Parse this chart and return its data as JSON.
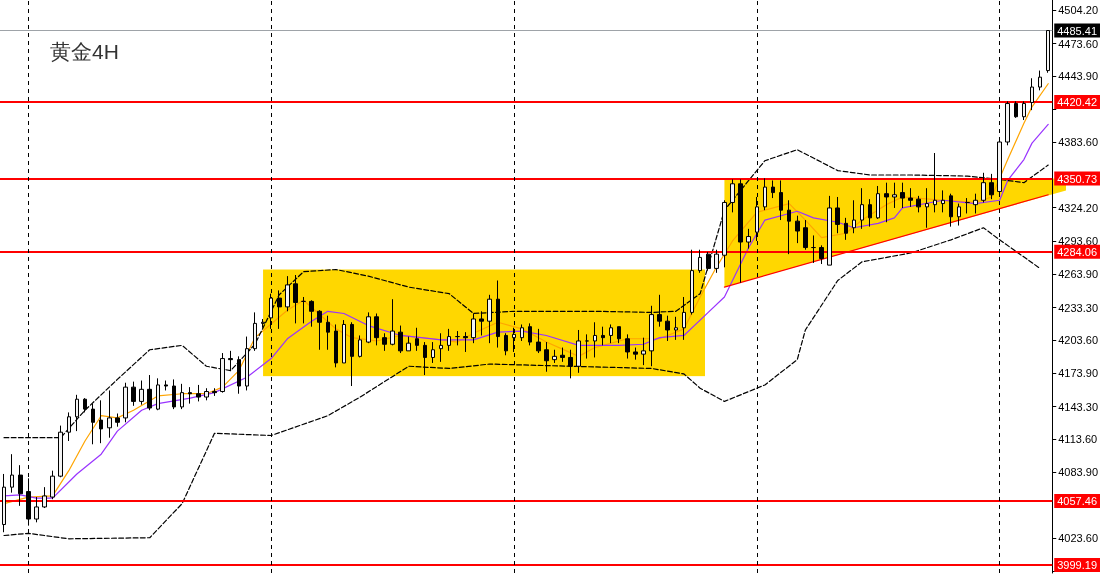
{
  "chart_data": {
    "type": "candlestick",
    "title": "黄金4H",
    "categories": [
      null,
      null,
      null,
      null,
      null,
      null,
      null,
      null,
      null,
      null,
      null,
      null,
      null,
      null,
      null,
      null,
      null,
      null,
      null,
      null,
      null,
      null,
      null,
      null,
      null,
      null,
      null,
      null,
      null,
      null,
      null,
      null,
      null,
      null,
      null,
      null,
      null,
      null,
      null,
      null,
      null,
      null,
      null,
      null,
      null,
      null,
      null,
      null,
      null,
      null,
      null,
      null,
      null,
      null,
      null,
      null,
      null,
      null,
      null,
      null,
      null,
      null,
      null,
      null,
      null,
      null,
      null,
      null,
      null,
      null,
      null,
      null,
      null,
      null,
      null,
      null,
      null,
      null,
      null,
      null,
      null,
      null,
      null,
      null,
      null,
      null,
      null,
      null,
      null,
      null,
      null,
      null,
      null,
      null,
      null,
      null,
      null,
      null,
      null,
      null,
      null,
      null,
      null,
      null,
      null,
      null,
      null,
      null,
      null,
      null,
      null,
      null,
      null,
      null,
      null,
      null,
      null,
      null,
      null,
      null,
      null,
      null,
      null,
      null,
      null,
      null,
      null,
      null,
      null,
      null
    ],
    "ohlc": [
      [
        4036,
        4082,
        4029,
        4070
      ],
      [
        4070,
        4100,
        4065,
        4081
      ],
      [
        4081,
        4090,
        4053,
        4064
      ],
      [
        4066,
        4078,
        4035,
        4041
      ],
      [
        4041,
        4061,
        4038,
        4052
      ],
      [
        4052,
        4070,
        4051,
        4062
      ],
      [
        4061,
        4085,
        4059,
        4080
      ],
      [
        4080,
        4126,
        4079,
        4120
      ],
      [
        4120,
        4138,
        4112,
        4134
      ],
      [
        4134,
        4154,
        4121,
        4150
      ],
      [
        4150,
        4151,
        4138,
        4141
      ],
      [
        4141,
        4146,
        4109,
        4129
      ],
      [
        4131,
        4149,
        4110,
        4123
      ],
      [
        4124,
        4158,
        4115,
        4133
      ],
      [
        4133,
        4137,
        4125,
        4129
      ],
      [
        4133,
        4165,
        4129,
        4161
      ],
      [
        4161,
        4166,
        4144,
        4148
      ],
      [
        4148,
        4167,
        4145,
        4159
      ],
      [
        4159,
        4172,
        4140,
        4142
      ],
      [
        4141,
        4169,
        4140,
        4163
      ],
      [
        4163,
        4167,
        4158,
        4162
      ],
      [
        4162,
        4168,
        4141,
        4143
      ],
      [
        4143,
        4164,
        4141,
        4156
      ],
      [
        4156,
        4161,
        4146,
        4155
      ],
      [
        4155,
        4163,
        4148,
        4152
      ],
      [
        4152,
        4160,
        4149,
        4157
      ],
      [
        4157,
        4160,
        4153,
        4156
      ],
      [
        4157,
        4192,
        4156,
        4187
      ],
      [
        4187,
        4194,
        4176,
        4186
      ],
      [
        4186,
        4189,
        4155,
        4162
      ],
      [
        4162,
        4207,
        4158,
        4196
      ],
      [
        4196,
        4229,
        4194,
        4219
      ],
      [
        4219,
        4223,
        4215,
        4220
      ],
      [
        4224,
        4246,
        4214,
        4242
      ],
      [
        4242,
        4249,
        4214,
        4234
      ],
      [
        4234,
        4262,
        4230,
        4254
      ],
      [
        4255,
        4263,
        4219,
        4238
      ],
      [
        4239,
        4243,
        4219,
        4239
      ],
      [
        4239,
        4240,
        4216,
        4230
      ],
      [
        4230,
        4231,
        4195,
        4220
      ],
      [
        4220,
        4226,
        4195,
        4211
      ],
      [
        4212,
        4218,
        4179,
        4183
      ],
      [
        4183,
        4222,
        4183,
        4218
      ],
      [
        4218,
        4220,
        4162,
        4189
      ],
      [
        4189,
        4208,
        4188,
        4204
      ],
      [
        4202,
        4229,
        4201,
        4225
      ],
      [
        4225,
        4228,
        4199,
        4206
      ],
      [
        4206,
        4210,
        4194,
        4200
      ],
      [
        4200,
        4241,
        4199,
        4212
      ],
      [
        4211,
        4217,
        4192,
        4194
      ],
      [
        4194,
        4207,
        4194,
        4201
      ],
      [
        4205,
        4215,
        4194,
        4199
      ],
      [
        4199,
        4202,
        4172,
        4188
      ],
      [
        4188,
        4202,
        4183,
        4195
      ],
      [
        4196,
        4210,
        4184,
        4199
      ],
      [
        4199,
        4214,
        4194,
        4207
      ],
      [
        4207,
        4212,
        4199,
        4207
      ],
      [
        4207,
        4211,
        4193,
        4206
      ],
      [
        4206,
        4228,
        4201,
        4223
      ],
      [
        4223,
        4230,
        4208,
        4221
      ],
      [
        4221,
        4245,
        4201,
        4241
      ],
      [
        4241,
        4258,
        4197,
        4207
      ],
      [
        4208,
        4210,
        4190,
        4194
      ],
      [
        4206,
        4215,
        4193,
        4209
      ],
      [
        4206,
        4218,
        4203,
        4215
      ],
      [
        4216,
        4219,
        4199,
        4202
      ],
      [
        4202,
        4214,
        4192,
        4194
      ],
      [
        4195,
        4202,
        4175,
        4185
      ],
      [
        4186,
        4195,
        4183,
        4189
      ],
      [
        4190,
        4197,
        4184,
        4188
      ],
      [
        4188,
        4195,
        4169,
        4180
      ],
      [
        4180,
        4213,
        4174,
        4203
      ],
      [
        4203,
        4209,
        4187,
        4203
      ],
      [
        4203,
        4220,
        4188,
        4208
      ],
      [
        4208,
        4216,
        4199,
        4206
      ],
      [
        4208,
        4218,
        4201,
        4215
      ],
      [
        4216,
        4216,
        4201,
        4205
      ],
      [
        4205,
        4209,
        4187,
        4193
      ],
      [
        4193,
        4197,
        4186,
        4191
      ],
      [
        4191,
        4206,
        4181,
        4194
      ],
      [
        4194,
        4235,
        4180,
        4227
      ],
      [
        4227,
        4245,
        4216,
        4221
      ],
      [
        4221,
        4226,
        4203,
        4213
      ],
      [
        4213,
        4225,
        4204,
        4215
      ],
      [
        4215,
        4243,
        4204,
        4229
      ],
      [
        4229,
        4286,
        4227,
        4267
      ],
      [
        4267,
        4286,
        4265,
        4279
      ],
      [
        4282,
        4284,
        4267,
        4269
      ],
      [
        4269,
        4286,
        4265,
        4282
      ],
      [
        4281,
        4331,
        4270,
        4329
      ],
      [
        4329,
        4350,
        4320,
        4346
      ],
      [
        4346,
        4350,
        4256,
        4293
      ],
      [
        4293,
        4305,
        4287,
        4298
      ],
      [
        4302,
        4334,
        4294,
        4325
      ],
      [
        4325,
        4351,
        4322,
        4343
      ],
      [
        4343,
        4349,
        4333,
        4338
      ],
      [
        4338,
        4349,
        4313,
        4322
      ],
      [
        4322,
        4331,
        4282,
        4312
      ],
      [
        4312,
        4317,
        4292,
        4303
      ],
      [
        4306,
        4313,
        4286,
        4288
      ],
      [
        4288,
        4299,
        4274,
        4288
      ],
      [
        4288,
        4290,
        4273,
        4278
      ],
      [
        4272,
        4335,
        4272,
        4324
      ],
      [
        4324,
        4334,
        4301,
        4309
      ],
      [
        4310,
        4315,
        4295,
        4301
      ],
      [
        4306,
        4331,
        4301,
        4313
      ],
      [
        4313,
        4342,
        4305,
        4327
      ],
      [
        4327,
        4332,
        4307,
        4315
      ],
      [
        4315,
        4344,
        4314,
        4337
      ],
      [
        4337,
        4347,
        4311,
        4334
      ],
      [
        4334,
        4347,
        4324,
        4336
      ],
      [
        4338,
        4347,
        4324,
        4333
      ],
      [
        4333,
        4342,
        4325,
        4331
      ],
      [
        4332,
        4335,
        4320,
        4325
      ],
      [
        4325,
        4342,
        4306,
        4328
      ],
      [
        4327,
        4374,
        4320,
        4331
      ],
      [
        4328,
        4340,
        4320,
        4331
      ],
      [
        4335,
        4337,
        4307,
        4316
      ],
      [
        4316,
        4328,
        4308,
        4325
      ],
      [
        4329,
        4333,
        4319,
        4329
      ],
      [
        4327,
        4337,
        4319,
        4331
      ],
      [
        4331,
        4356,
        4329,
        4347
      ],
      [
        4347,
        4355,
        4332,
        4336
      ],
      [
        4339,
        4387,
        4336,
        4384
      ],
      [
        4384,
        4421,
        4381,
        4419
      ],
      [
        4419,
        4421,
        4406,
        4407
      ],
      [
        4407,
        4421,
        4404,
        4419
      ],
      [
        4420,
        4442,
        4413,
        4434
      ],
      [
        4434,
        4449,
        4431,
        4443
      ],
      [
        4449,
        4485.41,
        4447,
        4485.41
      ]
    ],
    "series": [
      {
        "type": "line",
        "color": "#ffa500",
        "values": [
          4055,
          null,
          null,
          4061,
          null,
          null,
          4062,
          null,
          4085,
          null,
          4112,
          null,
          4135,
          null,
          4133,
          null,
          4140,
          null,
          null,
          4153,
          null,
          null,
          4155,
          null,
          null,
          4155,
          null,
          4161,
          null,
          4176,
          null,
          4206,
          null,
          null,
          null,
          4231,
          null,
          4240,
          null,
          null,
          null,
          4214,
          null,
          4206,
          null,
          null,
          4203,
          null,
          null,
          4208,
          null,
          null,
          null,
          4205,
          null,
          null,
          4202,
          null,
          4210,
          null,
          null,
          4220,
          null,
          null,
          4214,
          null,
          null,
          4202,
          null,
          null,
          null,
          4189,
          null,
          4197,
          null,
          null,
          null,
          4205,
          null,
          null,
          null,
          4205,
          null,
          null,
          4214,
          null,
          4243,
          null,
          4270,
          null,
          4294,
          null,
          null,
          4320,
          null,
          null,
          null,
          4328,
          null,
          4313,
          null,
          4297,
          null,
          null,
          4301,
          null,
          4313,
          null,
          null,
          4327,
          null,
          4334,
          null,
          null,
          null,
          null,
          4331,
          null,
          null,
          null,
          4329,
          null,
          4334,
          null,
          4368,
          null,
          4401,
          4416,
          null,
          4437
        ]
      },
      {
        "type": "line",
        "color": "#9933ff",
        "values": [
          4062,
          null,
          4063,
          null,
          4060,
          null,
          4060,
          null,
          null,
          4082,
          null,
          null,
          4100,
          null,
          4121,
          null,
          null,
          4140,
          null,
          4146,
          null,
          null,
          null,
          4151,
          null,
          null,
          4156,
          null,
          null,
          null,
          4170,
          null,
          null,
          4187,
          null,
          4205,
          null,
          null,
          4221,
          null,
          4230,
          null,
          4228,
          null,
          null,
          4217,
          null,
          null,
          null,
          4208,
          null,
          null,
          null,
          null,
          4204,
          null,
          null,
          null,
          4204,
          null,
          null,
          4211,
          null,
          null,
          4212,
          null,
          null,
          4208,
          null,
          null,
          null,
          4199,
          null,
          null,
          null,
          null,
          4199,
          null,
          null,
          4200,
          null,
          4206,
          null,
          null,
          4208,
          null,
          null,
          4229,
          null,
          4243,
          null,
          null,
          4288,
          null,
          4313,
          null,
          null,
          null,
          4321,
          null,
          4315,
          null,
          null,
          4311,
          null,
          4306,
          null,
          null,
          4310,
          null,
          4315,
          4324,
          null,
          null,
          null,
          null,
          4331,
          null,
          null,
          null,
          4328,
          null,
          null,
          4331,
          4349,
          null,
          4368,
          4383,
          null,
          4400
        ]
      },
      {
        "type": "line",
        "color": "#000000",
        "line_style": "dashed",
        "values": [
          4115,
          null,
          null,
          null,
          null,
          null,
          null,
          4115,
          null,
          null,
          4140,
          null,
          null,
          null,
          4168,
          null,
          null,
          null,
          4195,
          null,
          null,
          null,
          4199,
          null,
          null,
          4180,
          null,
          null,
          4176,
          null,
          null,
          4200,
          null,
          null,
          4245,
          null,
          null,
          4266,
          null,
          null,
          null,
          4268,
          null,
          null,
          null,
          4262,
          null,
          null,
          null,
          null,
          4252,
          null,
          null,
          null,
          null,
          4246,
          null,
          null,
          4228,
          null,
          null,
          null,
          null,
          4230,
          null,
          null,
          null,
          null,
          null,
          null,
          null,
          null,
          null,
          4230,
          null,
          null,
          null,
          null,
          null,
          null,
          4229,
          null,
          null,
          4230,
          null,
          null,
          4246,
          null,
          null,
          4322,
          null,
          null,
          null,
          null,
          4367,
          null,
          null,
          null,
          4377,
          null,
          null,
          null,
          null,
          4358,
          null,
          null,
          null,
          4354,
          null,
          null,
          null,
          null,
          4354,
          null,
          null,
          null,
          null,
          null,
          null,
          4353,
          null,
          null,
          null,
          4350,
          null,
          null,
          4347,
          null,
          null,
          4363
        ]
      },
      {
        "type": "line",
        "color": "#000000",
        "line_style": "dashed",
        "values": [
          4026,
          null,
          null,
          4028,
          null,
          null,
          null,
          null,
          4023,
          null,
          null,
          null,
          null,
          null,
          null,
          null,
          null,
          null,
          4024,
          null,
          null,
          null,
          4055,
          null,
          null,
          null,
          4119,
          null,
          null,
          null,
          null,
          null,
          null,
          4117,
          null,
          null,
          null,
          null,
          null,
          null,
          4135,
          null,
          null,
          null,
          4152,
          null,
          null,
          null,
          null,
          null,
          4180,
          null,
          null,
          null,
          null,
          4178,
          null,
          null,
          null,
          null,
          4182,
          null,
          null,
          null,
          null,
          null,
          null,
          null,
          null,
          null,
          4180,
          null,
          null,
          null,
          null,
          null,
          null,
          null,
          null,
          null,
          4178,
          null,
          null,
          null,
          4173,
          null,
          4160,
          null,
          null,
          4148,
          null,
          null,
          null,
          null,
          4163,
          null,
          null,
          null,
          4186,
          4213,
          null,
          null,
          null,
          4258,
          null,
          null,
          4275,
          null,
          null,
          null,
          null,
          null,
          4283,
          null,
          null,
          null,
          null,
          4295,
          null,
          null,
          null,
          4306,
          null,
          4295,
          null,
          null,
          null,
          null,
          4269,
          null
        ]
      },
      {
        "type": "line",
        "color": "#ff0000",
        "values": [
          null,
          null,
          null,
          null,
          null,
          null,
          null,
          null,
          null,
          null,
          null,
          null,
          null,
          null,
          null,
          null,
          null,
          null,
          null,
          null,
          null,
          null,
          null,
          null,
          null,
          null,
          null,
          null,
          null,
          null,
          null,
          null,
          null,
          null,
          null,
          null,
          null,
          null,
          null,
          null,
          null,
          null,
          null,
          null,
          null,
          null,
          null,
          null,
          null,
          null,
          null,
          null,
          null,
          null,
          null,
          null,
          null,
          null,
          null,
          null,
          null,
          null,
          null,
          null,
          null,
          null,
          null,
          null,
          null,
          null,
          null,
          null,
          null,
          null,
          null,
          null,
          null,
          null,
          null,
          null,
          null,
          null,
          null,
          null,
          null,
          null,
          null,
          null,
          null,
          4252,
          null,
          null,
          null,
          null,
          null,
          null,
          null,
          null,
          null,
          null,
          null,
          null,
          null,
          null,
          null,
          null,
          null,
          null,
          null,
          null,
          null,
          null,
          null,
          null,
          null,
          null,
          null,
          null,
          null,
          null,
          null,
          null,
          null,
          null,
          null,
          null,
          null,
          null,
          null,
          4336
        ]
      }
    ],
    "ylim": [
      3991.9,
      4513.2
    ],
    "yticks": [
      {
        "value": 4504.2,
        "label": "4504.20"
      },
      {
        "value": 4473.6,
        "label": "4473.60"
      },
      {
        "value": 4443.9,
        "label": "4443.90"
      },
      {
        "value": 4414.2,
        "label": null
      },
      {
        "value": 4383.6,
        "label": "4383.60"
      },
      {
        "value": 4324.2,
        "label": "4324.20"
      },
      {
        "value": 4293.6,
        "label": "4293.60"
      },
      {
        "value": 4263.9,
        "label": "4263.90"
      },
      {
        "value": 4233.3,
        "label": "4233.30"
      },
      {
        "value": 4203.6,
        "label": "4203.60"
      },
      {
        "value": 4173.9,
        "label": "4173.90"
      },
      {
        "value": 4143.3,
        "label": "4143.30"
      },
      {
        "value": 4113.6,
        "label": "4113.60"
      },
      {
        "value": 4083.9,
        "label": "4083.90"
      },
      {
        "value": 4023.6,
        "label": "4023.60"
      },
      {
        "value": 3993.9,
        "label": null
      }
    ],
    "tick_labels": "y",
    "grid": "x",
    "ref_lines": [
      {
        "axis": "y",
        "value": 4485.41,
        "label": "4485.41",
        "color": "#9ea3a8"
      },
      {
        "axis": "y",
        "value": 4420.42,
        "label": "4420.42",
        "color": "#ff0000"
      },
      {
        "axis": "y",
        "value": 4350.73,
        "label": "4350.73",
        "color": "#ff0000"
      },
      {
        "axis": "y",
        "value": 4284.06,
        "label": "4284.06",
        "color": "#ff0000"
      },
      {
        "axis": "y",
        "value": 4057.46,
        "label": "4057.46",
        "color": "#ff0000"
      },
      {
        "axis": "y",
        "value": 3999.19,
        "label": "3999.19",
        "color": "#ff0000"
      }
    ]
  }
}
